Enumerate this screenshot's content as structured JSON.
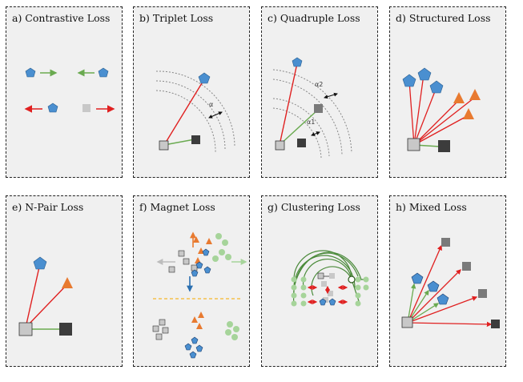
{
  "panels": [
    {
      "title": "a) Contrastive Loss"
    },
    {
      "title": "b) Triplet Loss"
    },
    {
      "title": "c) Quadruple Loss"
    },
    {
      "title": "d) Structured Loss"
    },
    {
      "title": "e) N-Pair Loss"
    },
    {
      "title": "f) Magnet Loss"
    },
    {
      "title": "g) Clustering Loss"
    },
    {
      "title": "h) Mixed Loss"
    }
  ],
  "margin_labels": {
    "triplet": "α",
    "quadruple_1": "α2",
    "quadruple_2": "α1"
  },
  "colors": {
    "pentagon": "#4a8fd0",
    "triangle": "#e87a30",
    "anchor_square": "#c8c8c8",
    "negative_square": "#3c3c3c",
    "mid_square": "#7a7a7a",
    "green_circle": "#a6d49a",
    "pull_arrow": "#6aaa50",
    "push_arrow": "#e02020",
    "gray_arrow": "#bdbdbd",
    "divider": "#f5c04a"
  }
}
